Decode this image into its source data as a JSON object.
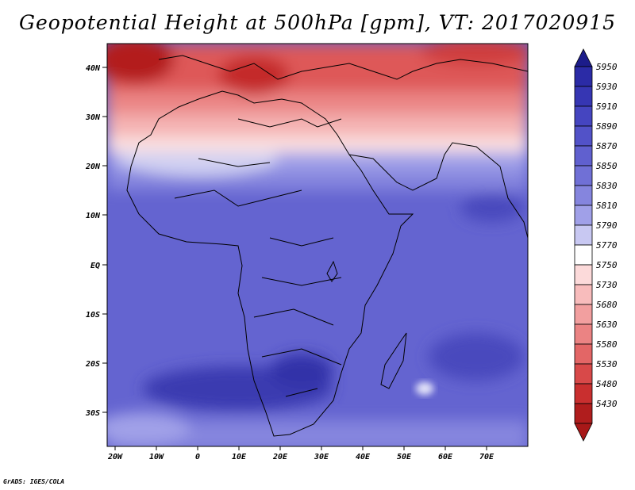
{
  "title": "Geopotential Height at 500hPa [gpm], VT: 2017020915",
  "credit": "GrADS: IGES/COLA",
  "lat_labels": [
    "40N",
    "30N",
    "20N",
    "10N",
    "EQ",
    "10S",
    "20S",
    "30S"
  ],
  "lon_labels": [
    "20W",
    "10W",
    "0",
    "10E",
    "20E",
    "30E",
    "40E",
    "50E",
    "60E",
    "70E"
  ],
  "colorbar": {
    "levels": [
      "5950",
      "5930",
      "5910",
      "5890",
      "5870",
      "5850",
      "5830",
      "5810",
      "5790",
      "5770",
      "5750",
      "5730",
      "5680",
      "5630",
      "5580",
      "5530",
      "5480",
      "5430"
    ],
    "colors": [
      "#2b2ba6",
      "#3636b3",
      "#4545c0",
      "#5252c8",
      "#6060cf",
      "#7070d6",
      "#8585de",
      "#a0a0e8",
      "#c8c8f2",
      "#ffffff",
      "#fcdada",
      "#f8bcbc",
      "#f29f9f",
      "#eb8383",
      "#e36666",
      "#d84949",
      "#c92f2f",
      "#b01d1d"
    ],
    "top_arrow_color": "#1c1c8a",
    "bottom_arrow_color": "#a81818"
  },
  "colors": {
    "coast_line": "#000000",
    "tropical_blue": "#6464d0",
    "deep_blue": "#3a3ab0",
    "mid_lat_red": "#d84c4c"
  }
}
